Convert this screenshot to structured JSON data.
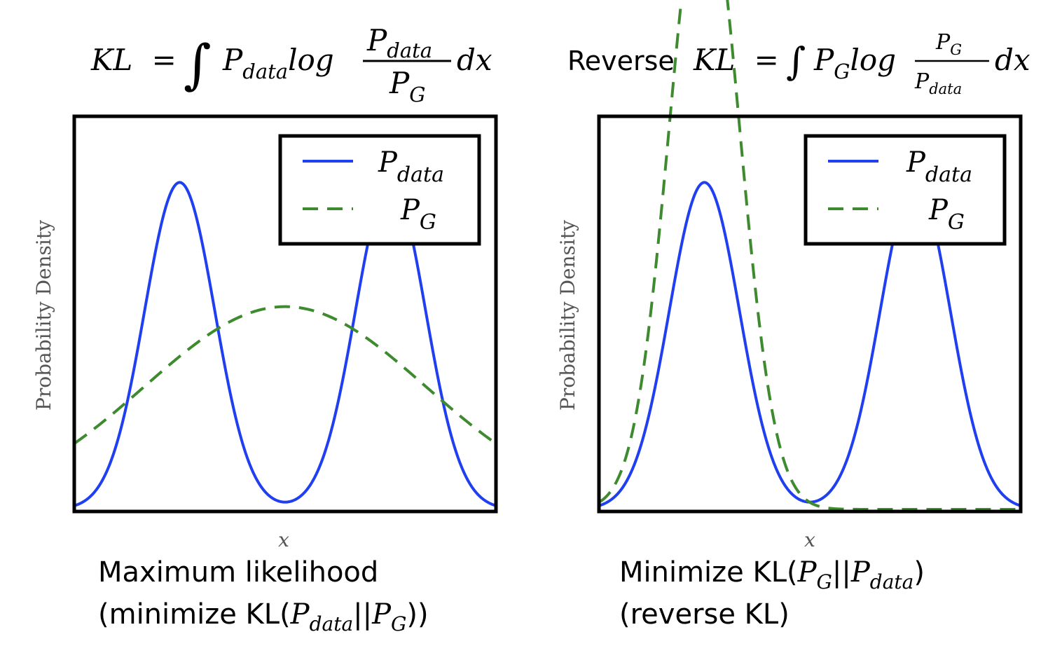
{
  "chart_data": [
    {
      "type": "line",
      "title": {
        "lhs": "KL",
        "equals": "=",
        "integral": "∫",
        "p_main": "P",
        "p_main_sub": "data",
        "log": "log",
        "frac_num": "P",
        "frac_num_sub": "data",
        "frac_den": "P",
        "frac_den_sub": "G",
        "dx": "dx"
      },
      "xlabel": "x",
      "ylabel": "Probability Density",
      "x_range": [
        -6,
        6
      ],
      "ylim": [
        0,
        1.08
      ],
      "legend_position": "top-right",
      "series": [
        {
          "name": "P",
          "name_sub": "data",
          "style": "solid",
          "color": "#1f3ff0",
          "components": [
            {
              "mean": -3,
              "sd": 1,
              "amplitude": 1.0
            },
            {
              "mean": 3,
              "sd": 1,
              "amplitude": 1.0
            }
          ]
        },
        {
          "name": "P",
          "name_sub": "G",
          "style": "dashed",
          "color": "#3e8a2e",
          "components": [
            {
              "mean": 0,
              "sd": 4,
              "amplitude": 0.62
            }
          ]
        }
      ],
      "caption": {
        "line1": "Maximum likelihood",
        "line2_prefix": "(minimize KL(",
        "line2_p1": "P",
        "line2_p1_sub": "data",
        "line2_sep": "||",
        "line2_p2": "P",
        "line2_p2_sub": "G",
        "line2_suffix": "))"
      }
    },
    {
      "type": "line",
      "title": {
        "prefix": "Reverse",
        "lhs": "KL",
        "equals": "=",
        "integral": "∫",
        "p_main": "P",
        "p_main_sub": "G",
        "log": "log",
        "frac_num": "P",
        "frac_num_sub": "G",
        "frac_den": "P",
        "frac_den_sub": "data",
        "dx": "dx"
      },
      "xlabel": "x",
      "ylabel": "Probability Density",
      "x_range": [
        -6,
        6
      ],
      "ylim": [
        0,
        1.08
      ],
      "legend_position": "top-right",
      "series": [
        {
          "name": "P",
          "name_sub": "data",
          "style": "solid",
          "color": "#1f3ff0",
          "components": [
            {
              "mean": -3,
              "sd": 1,
              "amplitude": 1.0
            },
            {
              "mean": 3,
              "sd": 1,
              "amplitude": 1.0
            }
          ]
        },
        {
          "name": "P",
          "name_sub": "G",
          "style": "dashed",
          "color": "#3e8a2e",
          "components": [
            {
              "mean": -3,
              "sd": 1,
              "amplitude": 1.93
            }
          ]
        }
      ],
      "caption": {
        "line1_prefix": "Minimize KL(",
        "line1_p1": "P",
        "line1_p1_sub": "G",
        "line1_sep": "||",
        "line1_p2": "P",
        "line1_p2_sub": "data",
        "line1_suffix": ")",
        "line2": "(reverse KL)"
      }
    }
  ]
}
